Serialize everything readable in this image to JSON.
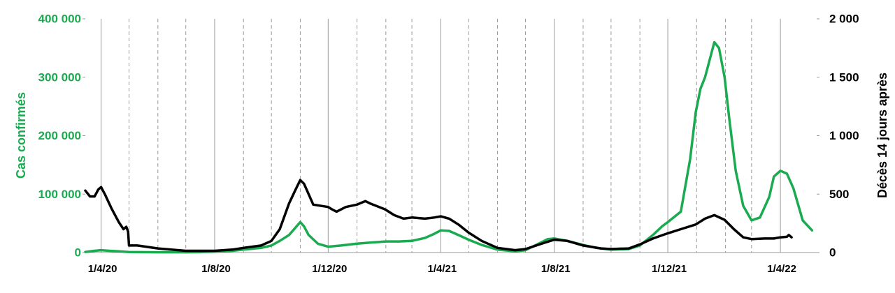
{
  "chart_data": {
    "type": "line",
    "ylabel_left": "Cas confirmés",
    "ylabel_right": "Décès 14 jours après",
    "ylim_left": [
      0,
      400000
    ],
    "ylim_right": [
      0,
      2000
    ],
    "yticks_left": [
      "0",
      "100 000",
      "200 000",
      "300 000",
      "400 000"
    ],
    "yticks_right": [
      "0",
      "500",
      "1 000",
      "1 500",
      "2 000"
    ],
    "xlim": [
      "2020-03-15",
      "2022-05-10"
    ],
    "xticks": [
      {
        "date": "2020-04-01",
        "label": "1/4/20"
      },
      {
        "date": "2020-08-01",
        "label": "1/8/20"
      },
      {
        "date": "2020-12-01",
        "label": "1/12/20"
      },
      {
        "date": "2021-04-01",
        "label": "1/4/21"
      },
      {
        "date": "2021-08-01",
        "label": "1/8/21"
      },
      {
        "date": "2021-12-01",
        "label": "1/12/21"
      },
      {
        "date": "2022-04-01",
        "label": "1/4/22"
      }
    ],
    "solid_gridlines": [
      "2020-04-01",
      "2020-08-01",
      "2020-12-01",
      "2021-04-01",
      "2021-08-01",
      "2021-12-01",
      "2022-04-01"
    ],
    "dashed_gridlines": [
      "2020-05-01",
      "2020-06-01",
      "2020-07-01",
      "2020-09-01",
      "2020-10-01",
      "2020-11-01",
      "2021-01-01",
      "2021-02-01",
      "2021-03-01",
      "2021-05-01",
      "2021-06-01",
      "2021-07-01",
      "2021-09-01",
      "2021-10-01",
      "2021-11-01",
      "2022-01-01",
      "2022-02-01",
      "2022-03-01"
    ],
    "colors": {
      "cases": "#1aaa50",
      "deaths": "#000000",
      "grid_solid": "#9a9a9a",
      "grid_dashed": "#9a9a9a"
    },
    "series": [
      {
        "axis": "left",
        "color": "#1aaa50",
        "points": [
          [
            "2020-03-15",
            1000
          ],
          [
            "2020-03-25",
            3000
          ],
          [
            "2020-04-01",
            4000
          ],
          [
            "2020-04-10",
            3000
          ],
          [
            "2020-04-20",
            2000
          ],
          [
            "2020-05-01",
            1000
          ],
          [
            "2020-06-01",
            500
          ],
          [
            "2020-07-01",
            500
          ],
          [
            "2020-07-15",
            700
          ],
          [
            "2020-08-01",
            1500
          ],
          [
            "2020-08-20",
            3000
          ],
          [
            "2020-09-01",
            5000
          ],
          [
            "2020-09-20",
            8000
          ],
          [
            "2020-10-01",
            12000
          ],
          [
            "2020-10-10",
            20000
          ],
          [
            "2020-10-20",
            30000
          ],
          [
            "2020-10-27",
            43000
          ],
          [
            "2020-11-01",
            52000
          ],
          [
            "2020-11-05",
            45000
          ],
          [
            "2020-11-10",
            30000
          ],
          [
            "2020-11-20",
            15000
          ],
          [
            "2020-12-01",
            10000
          ],
          [
            "2020-12-15",
            12000
          ],
          [
            "2020-12-31",
            15000
          ],
          [
            "2021-01-15",
            17000
          ],
          [
            "2021-02-01",
            19000
          ],
          [
            "2021-02-15",
            19000
          ],
          [
            "2021-03-01",
            20000
          ],
          [
            "2021-03-15",
            25000
          ],
          [
            "2021-03-25",
            32000
          ],
          [
            "2021-04-01",
            38000
          ],
          [
            "2021-04-10",
            37000
          ],
          [
            "2021-04-20",
            30000
          ],
          [
            "2021-05-01",
            22000
          ],
          [
            "2021-05-15",
            13000
          ],
          [
            "2021-06-01",
            5000
          ],
          [
            "2021-06-20",
            2000
          ],
          [
            "2021-07-01",
            4000
          ],
          [
            "2021-07-15",
            15000
          ],
          [
            "2021-07-25",
            23000
          ],
          [
            "2021-08-01",
            24000
          ],
          [
            "2021-08-15",
            20000
          ],
          [
            "2021-09-01",
            13000
          ],
          [
            "2021-09-15",
            8000
          ],
          [
            "2021-10-01",
            5000
          ],
          [
            "2021-10-20",
            6000
          ],
          [
            "2021-11-01",
            12000
          ],
          [
            "2021-11-15",
            30000
          ],
          [
            "2021-11-25",
            45000
          ],
          [
            "2021-12-01",
            52000
          ],
          [
            "2021-12-15",
            70000
          ],
          [
            "2021-12-25",
            160000
          ],
          [
            "2021-12-31",
            240000
          ],
          [
            "2022-01-05",
            280000
          ],
          [
            "2022-01-10",
            300000
          ],
          [
            "2022-01-15",
            330000
          ],
          [
            "2022-01-20",
            360000
          ],
          [
            "2022-01-25",
            350000
          ],
          [
            "2022-01-31",
            300000
          ],
          [
            "2022-02-05",
            230000
          ],
          [
            "2022-02-12",
            140000
          ],
          [
            "2022-02-20",
            80000
          ],
          [
            "2022-03-01",
            55000
          ],
          [
            "2022-03-10",
            60000
          ],
          [
            "2022-03-20",
            95000
          ],
          [
            "2022-03-25",
            130000
          ],
          [
            "2022-04-01",
            140000
          ],
          [
            "2022-04-08",
            135000
          ],
          [
            "2022-04-15",
            110000
          ],
          [
            "2022-04-25",
            55000
          ],
          [
            "2022-05-05",
            38000
          ]
        ]
      },
      {
        "axis": "right",
        "color": "#000000",
        "points": [
          [
            "2020-03-15",
            530
          ],
          [
            "2020-03-20",
            480
          ],
          [
            "2020-03-25",
            480
          ],
          [
            "2020-03-29",
            540
          ],
          [
            "2020-04-01",
            560
          ],
          [
            "2020-04-05",
            500
          ],
          [
            "2020-04-12",
            380
          ],
          [
            "2020-04-20",
            260
          ],
          [
            "2020-04-25",
            200
          ],
          [
            "2020-04-28",
            220
          ],
          [
            "2020-04-30",
            180
          ],
          [
            "2020-05-01",
            60
          ],
          [
            "2020-05-10",
            60
          ],
          [
            "2020-06-01",
            35
          ],
          [
            "2020-07-01",
            15
          ],
          [
            "2020-08-01",
            15
          ],
          [
            "2020-08-20",
            25
          ],
          [
            "2020-09-01",
            40
          ],
          [
            "2020-09-20",
            60
          ],
          [
            "2020-10-01",
            100
          ],
          [
            "2020-10-10",
            200
          ],
          [
            "2020-10-20",
            420
          ],
          [
            "2020-10-27",
            540
          ],
          [
            "2020-11-01",
            620
          ],
          [
            "2020-11-05",
            590
          ],
          [
            "2020-11-10",
            500
          ],
          [
            "2020-11-15",
            410
          ],
          [
            "2020-12-01",
            390
          ],
          [
            "2020-12-05",
            370
          ],
          [
            "2020-12-10",
            350
          ],
          [
            "2020-12-20",
            390
          ],
          [
            "2021-01-01",
            410
          ],
          [
            "2021-01-10",
            440
          ],
          [
            "2021-01-15",
            420
          ],
          [
            "2021-01-31",
            370
          ],
          [
            "2021-02-10",
            320
          ],
          [
            "2021-02-20",
            290
          ],
          [
            "2021-03-01",
            300
          ],
          [
            "2021-03-15",
            290
          ],
          [
            "2021-03-25",
            300
          ],
          [
            "2021-04-01",
            310
          ],
          [
            "2021-04-10",
            290
          ],
          [
            "2021-04-20",
            240
          ],
          [
            "2021-05-01",
            170
          ],
          [
            "2021-05-15",
            100
          ],
          [
            "2021-06-01",
            40
          ],
          [
            "2021-06-20",
            20
          ],
          [
            "2021-07-01",
            30
          ],
          [
            "2021-07-20",
            80
          ],
          [
            "2021-08-01",
            110
          ],
          [
            "2021-08-15",
            100
          ],
          [
            "2021-09-01",
            60
          ],
          [
            "2021-09-20",
            35
          ],
          [
            "2021-10-01",
            30
          ],
          [
            "2021-10-20",
            35
          ],
          [
            "2021-11-01",
            70
          ],
          [
            "2021-11-15",
            120
          ],
          [
            "2021-12-01",
            165
          ],
          [
            "2021-12-15",
            200
          ],
          [
            "2021-12-31",
            240
          ],
          [
            "2022-01-10",
            290
          ],
          [
            "2022-01-20",
            320
          ],
          [
            "2022-01-31",
            280
          ],
          [
            "2022-02-10",
            200
          ],
          [
            "2022-02-20",
            130
          ],
          [
            "2022-03-01",
            115
          ],
          [
            "2022-03-15",
            120
          ],
          [
            "2022-03-25",
            120
          ],
          [
            "2022-04-01",
            130
          ],
          [
            "2022-04-08",
            135
          ],
          [
            "2022-04-10",
            150
          ],
          [
            "2022-04-13",
            130
          ]
        ]
      }
    ]
  }
}
